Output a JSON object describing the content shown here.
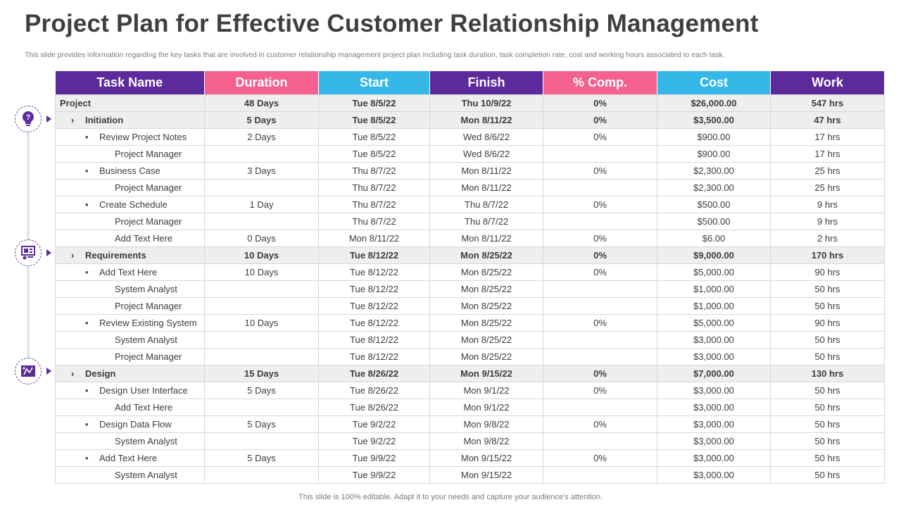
{
  "title": "Project Plan for Effective Customer Relationship Management",
  "subtitle": "This slide provides information regarding the key tasks that are involved in customer relationship management project plan including task duration, task completion rate, cost and working hours associated to each task.",
  "footer": "This slide is 100% editable. Adapt it to your needs and capture your audience's attention.",
  "colors": {
    "purple": "#5d2a9c",
    "pink": "#f4618f",
    "blue": "#35b8e8"
  },
  "timeline_icons": [
    "lightbulb-question-icon",
    "presentation-board-icon",
    "design-board-icon"
  ],
  "table": {
    "headers": [
      "Task Name",
      "Duration",
      "Start",
      "Finish",
      "% Comp.",
      "Cost",
      "Work"
    ],
    "rows": [
      {
        "marker": "",
        "task": "Project",
        "duration": "48 Days",
        "start": "Tue 8/5/22",
        "finish": "Thu 10/9/22",
        "comp": "0%",
        "cost": "$26,000.00",
        "work": "547 hrs"
      },
      {
        "marker": "›",
        "task": "Initiation",
        "duration": "5 Days",
        "start": "Tue 8/5/22",
        "finish": "Mon 8/11/22",
        "comp": "0%",
        "cost": "$3,500.00",
        "work": "47 hrs"
      },
      {
        "marker": "•",
        "task": "Review Project Notes",
        "duration": "2 Days",
        "start": "Tue 8/5/22",
        "finish": "Wed 8/6/22",
        "comp": "0%",
        "cost": "$900.00",
        "work": "17 hrs"
      },
      {
        "marker": "",
        "task": "Project Manager",
        "duration": "",
        "start": "Tue 8/5/22",
        "finish": "Wed 8/6/22",
        "comp": "",
        "cost": "$900.00",
        "work": "17 hrs"
      },
      {
        "marker": "•",
        "task": "Business Case",
        "duration": "3 Days",
        "start": "Thu 8/7/22",
        "finish": "Mon 8/11/22",
        "comp": "0%",
        "cost": "$2,300.00",
        "work": "25 hrs"
      },
      {
        "marker": "",
        "task": "Project Manager",
        "duration": "",
        "start": "Thu 8/7/22",
        "finish": "Mon 8/11/22",
        "comp": "",
        "cost": "$2,300.00",
        "work": "25 hrs"
      },
      {
        "marker": "•",
        "task": "Create Schedule",
        "duration": "1 Day",
        "start": "Thu 8/7/22",
        "finish": "Thu 8/7/22",
        "comp": "0%",
        "cost": "$500.00",
        "work": "9 hrs"
      },
      {
        "marker": "",
        "task": "Project Manager",
        "duration": "",
        "start": "Thu 8/7/22",
        "finish": "Thu 8/7/22",
        "comp": "",
        "cost": "$500.00",
        "work": "9 hrs"
      },
      {
        "marker": "",
        "task": "Add Text Here",
        "duration": "0 Days",
        "start": "Mon 8/11/22",
        "finish": "Mon 8/11/22",
        "comp": "0%",
        "cost": "$6.00",
        "work": "2 hrs"
      },
      {
        "marker": "›",
        "task": "Requirements",
        "duration": "10 Days",
        "start": "Tue 8/12/22",
        "finish": "Mon 8/25/22",
        "comp": "0%",
        "cost": "$9,000.00",
        "work": "170 hrs"
      },
      {
        "marker": "•",
        "task": "Add Text Here",
        "duration": "10 Days",
        "start": "Tue 8/12/22",
        "finish": "Mon 8/25/22",
        "comp": "0%",
        "cost": "$5,000.00",
        "work": "90 hrs"
      },
      {
        "marker": "",
        "task": "System Analyst",
        "duration": "",
        "start": "Tue 8/12/22",
        "finish": "Mon 8/25/22",
        "comp": "",
        "cost": "$1,000.00",
        "work": "50 hrs"
      },
      {
        "marker": "",
        "task": "Project Manager",
        "duration": "",
        "start": "Tue 8/12/22",
        "finish": "Mon 8/25/22",
        "comp": "",
        "cost": "$1,000.00",
        "work": "50 hrs"
      },
      {
        "marker": "•",
        "task": "Review Existing System",
        "duration": "10 Days",
        "start": "Tue 8/12/22",
        "finish": "Mon 8/25/22",
        "comp": "0%",
        "cost": "$5,000.00",
        "work": "90 hrs"
      },
      {
        "marker": "",
        "task": "System Analyst",
        "duration": "",
        "start": "Tue 8/12/22",
        "finish": "Mon 8/25/22",
        "comp": "",
        "cost": "$3,000.00",
        "work": "50 hrs"
      },
      {
        "marker": "",
        "task": "Project Manager",
        "duration": "",
        "start": "Tue 8/12/22",
        "finish": "Mon 8/25/22",
        "comp": "",
        "cost": "$3,000.00",
        "work": "50 hrs"
      },
      {
        "marker": "›",
        "task": "Design",
        "duration": "15 Days",
        "start": "Tue 8/26/22",
        "finish": "Mon 9/15/22",
        "comp": "0%",
        "cost": "$7,000.00",
        "work": "130 hrs"
      },
      {
        "marker": "•",
        "task": "Design User Interface",
        "duration": "5 Days",
        "start": "Tue 8/26/22",
        "finish": "Mon 9/1/22",
        "comp": "0%",
        "cost": "$3,000.00",
        "work": "50 hrs"
      },
      {
        "marker": "",
        "task": "Add Text Here",
        "duration": "",
        "start": "Tue 8/26/22",
        "finish": "Mon 9/1/22",
        "comp": "",
        "cost": "$3,000.00",
        "work": "50 hrs"
      },
      {
        "marker": "•",
        "task": "Design Data Flow",
        "duration": "5 Days",
        "start": "Tue 9/2/22",
        "finish": "Mon 9/8/22",
        "comp": "0%",
        "cost": "$3,000.00",
        "work": "50 hrs"
      },
      {
        "marker": "",
        "task": "System Analyst",
        "duration": "",
        "start": "Tue 9/2/22",
        "finish": "Mon 9/8/22",
        "comp": "",
        "cost": "$3,000.00",
        "work": "50 hrs"
      },
      {
        "marker": "•",
        "task": "Add Text Here",
        "duration": "5 Days",
        "start": "Tue 9/9/22",
        "finish": "Mon 9/15/22",
        "comp": "0%",
        "cost": "$3,000.00",
        "work": "50 hrs"
      },
      {
        "marker": "",
        "task": "System Analyst",
        "duration": "",
        "start": "Tue 9/9/22",
        "finish": "Mon 9/15/22",
        "comp": "",
        "cost": "$3,000.00",
        "work": "50 hrs"
      }
    ]
  }
}
